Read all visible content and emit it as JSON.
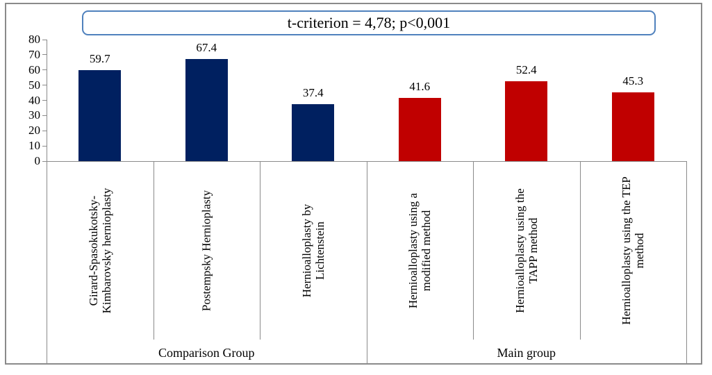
{
  "title_box": {
    "border_color": "#4f81bd"
  },
  "chart_data": {
    "type": "bar",
    "title": "t-criterion = 4,78; p<0,001",
    "xlabel": "",
    "ylabel": "",
    "ylim": [
      0,
      80
    ],
    "ytick_step": 10,
    "yticks": [
      0,
      10,
      20,
      30,
      40,
      50,
      60,
      70,
      80
    ],
    "grid": false,
    "legend": "none",
    "categories": [
      "Girard-Spasokukotsky-Kimbarovsky hernioplasty",
      "Postempsky Hernioplasty",
      "Hernioalloplasty by Lichtenstein",
      "Hernioalloplasty using a modified method",
      "Hernioalloplasty using the TAPP method",
      "Hernioalloplasty using the TEP method"
    ],
    "values": [
      59.7,
      67.4,
      37.4,
      41.6,
      52.4,
      45.3
    ],
    "colors": {
      "comparison_group_bar": "#002060",
      "main_group_bar": "#c00000",
      "axis_line": "#8a8a8a",
      "frame_border": "#8a8a8a",
      "title_border": "#4f81bd"
    },
    "groups": [
      {
        "label": "Comparison Group",
        "color": "#002060",
        "bars": [
          {
            "label": "Girard-Spasokukotsky-Kimbarovsky hernioplasty",
            "label_lines": [
              "Girard-Spasokukotsky-",
              "Kimbarovsky hernioplasty"
            ],
            "value": 59.7,
            "value_label": "59.7"
          },
          {
            "label": "Postempsky Hernioplasty",
            "label_lines": [
              "Postempsky Hernioplasty"
            ],
            "value": 67.4,
            "value_label": "67.4"
          },
          {
            "label": "Hernioalloplasty by Lichtenstein",
            "label_lines": [
              "Hernioalloplasty by",
              "Lichtenstein"
            ],
            "value": 37.4,
            "value_label": "37.4"
          }
        ]
      },
      {
        "label": "Main group",
        "color": "#c00000",
        "bars": [
          {
            "label": "Hernioalloplasty using a modified method",
            "label_lines": [
              "Hernioalloplasty using a",
              "modified method"
            ],
            "value": 41.6,
            "value_label": "41.6"
          },
          {
            "label": "Hernioalloplasty using the TAPP method",
            "label_lines": [
              "Hernioalloplasty using the",
              "TAPP method"
            ],
            "value": 52.4,
            "value_label": "52.4"
          },
          {
            "label": "Hernioalloplasty using the TEP method",
            "label_lines": [
              "Hernioalloplasty using the TEP",
              "method"
            ],
            "value": 45.3,
            "value_label": "45.3"
          }
        ]
      }
    ]
  }
}
